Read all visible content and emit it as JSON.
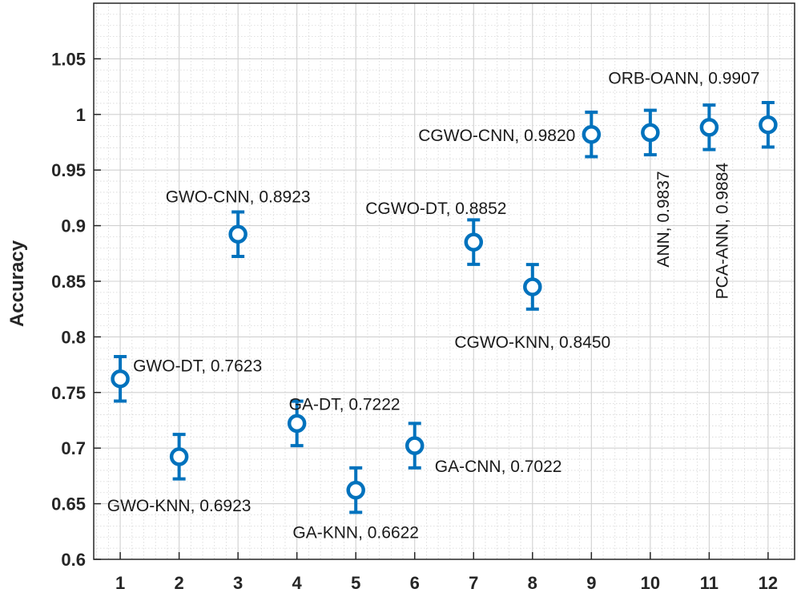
{
  "chart_data": {
    "type": "scatter",
    "title": "",
    "xlabel": "",
    "ylabel": "Accuracy",
    "xlim": [
      0.55,
      12.45
    ],
    "ylim": [
      0.6,
      1.1
    ],
    "xticks": [
      1,
      2,
      3,
      4,
      5,
      6,
      7,
      8,
      9,
      10,
      11,
      12
    ],
    "yticks": [
      0.6,
      0.65,
      0.7,
      0.75,
      0.8,
      0.85,
      0.9,
      0.95,
      1,
      1.05
    ],
    "ytick_labels": [
      "0.6",
      "0.65",
      "0.7",
      "0.75",
      "0.8",
      "0.85",
      "0.9",
      "0.95",
      "1",
      "1.05"
    ],
    "grid": true,
    "minor_grid": true,
    "marker": "circle",
    "error_bars": true,
    "error": 0.02,
    "color": "#0072BD",
    "points": [
      {
        "x": 1,
        "y": 0.7623,
        "label": "GWO-DT, 0.7623"
      },
      {
        "x": 2,
        "y": 0.6923,
        "label": "GWO-KNN, 0.6923"
      },
      {
        "x": 3,
        "y": 0.8923,
        "label": "GWO-CNN, 0.8923"
      },
      {
        "x": 4,
        "y": 0.7222,
        "label": "GA-DT, 0.7222"
      },
      {
        "x": 5,
        "y": 0.6622,
        "label": "GA-KNN, 0.6622"
      },
      {
        "x": 6,
        "y": 0.7022,
        "label": "GA-CNN, 0.7022"
      },
      {
        "x": 7,
        "y": 0.8852,
        "label": "CGWO-DT, 0.8852"
      },
      {
        "x": 8,
        "y": 0.845,
        "label": "CGWO-KNN, 0.8450"
      },
      {
        "x": 9,
        "y": 0.982,
        "label": "CGWO-CNN, 0.9820"
      },
      {
        "x": 10,
        "y": 0.9837,
        "label": "ANN, 0.9837"
      },
      {
        "x": 11,
        "y": 0.9884,
        "label": "PCA-ANN, 0.9884"
      },
      {
        "x": 12,
        "y": 0.9907,
        "label": "ORB-OANN, 0.9907"
      }
    ]
  }
}
